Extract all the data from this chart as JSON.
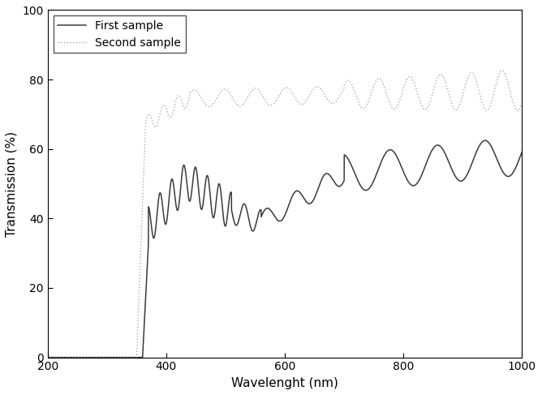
{
  "title": "",
  "xlabel": "Wavelenght (nm)",
  "ylabel": "Transmission (%)",
  "xlim": [
    200,
    1000
  ],
  "ylim": [
    0,
    100
  ],
  "xticks": [
    200,
    400,
    600,
    800,
    1000
  ],
  "yticks": [
    0,
    20,
    40,
    60,
    80,
    100
  ],
  "legend": [
    "First sample",
    "Second sample"
  ],
  "line1_color": "#3a3a3a",
  "line2_color": "#999999",
  "background_color": "#ffffff",
  "figsize": [
    6.68,
    4.87
  ],
  "dpi": 100
}
